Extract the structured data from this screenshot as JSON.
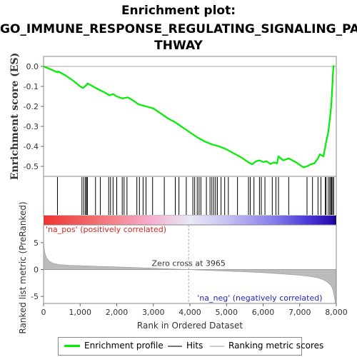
{
  "title_line1": "Enrichment plot:",
  "title_line2": "GO_IMMUNE_RESPONSE_REGULATING_SIGNALING_PA",
  "title_line3": "THWAY",
  "colors": {
    "enrichment_line": "#00ee00",
    "hits": "#000000",
    "metric_fill": "#bbbbbb",
    "pos_label": "#dd2222",
    "neg_label": "#2222cc",
    "zero_line": "#aaaaaa"
  },
  "chart_data": [
    {
      "type": "line",
      "name": "enrichment-profile",
      "ylabel": "Enrichment score (ES)",
      "ylim": [
        -0.55,
        0.05
      ],
      "xlim": [
        0,
        8000
      ],
      "yticks": [
        "0.0",
        "-0.1",
        "-0.2",
        "-0.3",
        "-0.4",
        "-0.5"
      ],
      "ytick_values": [
        0.0,
        -0.1,
        -0.2,
        -0.3,
        -0.4,
        -0.5
      ],
      "points": [
        [
          0,
          0.0
        ],
        [
          200,
          -0.015
        ],
        [
          380,
          -0.03
        ],
        [
          400,
          -0.025
        ],
        [
          600,
          -0.045
        ],
        [
          800,
          -0.07
        ],
        [
          1000,
          -0.1
        ],
        [
          1080,
          -0.108
        ],
        [
          1130,
          -0.1
        ],
        [
          1180,
          -0.092
        ],
        [
          1200,
          -0.085
        ],
        [
          1400,
          -0.105
        ],
        [
          1550,
          -0.12
        ],
        [
          1650,
          -0.128
        ],
        [
          1800,
          -0.145
        ],
        [
          1900,
          -0.138
        ],
        [
          2000,
          -0.15
        ],
        [
          2150,
          -0.16
        ],
        [
          2300,
          -0.155
        ],
        [
          2400,
          -0.165
        ],
        [
          2600,
          -0.19
        ],
        [
          2800,
          -0.2
        ],
        [
          3000,
          -0.21
        ],
        [
          3200,
          -0.235
        ],
        [
          3400,
          -0.26
        ],
        [
          3600,
          -0.28
        ],
        [
          3800,
          -0.305
        ],
        [
          4000,
          -0.33
        ],
        [
          4200,
          -0.355
        ],
        [
          4400,
          -0.375
        ],
        [
          4600,
          -0.39
        ],
        [
          4800,
          -0.4
        ],
        [
          5000,
          -0.415
        ],
        [
          5200,
          -0.435
        ],
        [
          5400,
          -0.455
        ],
        [
          5600,
          -0.48
        ],
        [
          5700,
          -0.49
        ],
        [
          5800,
          -0.475
        ],
        [
          5900,
          -0.47
        ],
        [
          6000,
          -0.478
        ],
        [
          6100,
          -0.475
        ],
        [
          6200,
          -0.488
        ],
        [
          6300,
          -0.48
        ],
        [
          6380,
          -0.485
        ],
        [
          6420,
          -0.45
        ],
        [
          6550,
          -0.47
        ],
        [
          6700,
          -0.46
        ],
        [
          6900,
          -0.48
        ],
        [
          7100,
          -0.505
        ],
        [
          7200,
          -0.5
        ],
        [
          7300,
          -0.49
        ],
        [
          7400,
          -0.485
        ],
        [
          7500,
          -0.46
        ],
        [
          7550,
          -0.44
        ],
        [
          7650,
          -0.45
        ],
        [
          7720,
          -0.38
        ],
        [
          7780,
          -0.33
        ],
        [
          7820,
          -0.27
        ],
        [
          7860,
          -0.2
        ],
        [
          7880,
          -0.14
        ],
        [
          7900,
          -0.07
        ],
        [
          7920,
          0.0
        ],
        [
          7940,
          0.005
        ]
      ]
    },
    {
      "type": "hits",
      "name": "hits",
      "x": [
        380,
        1050,
        1100,
        1150,
        1170,
        1200,
        1420,
        1550,
        1780,
        1830,
        1900,
        2000,
        2150,
        2200,
        2280,
        2550,
        2620,
        2720,
        2800,
        2980,
        3300,
        3600,
        3700,
        3900,
        4080,
        4130,
        4200,
        4250,
        4300,
        4450,
        4550,
        4600,
        4650,
        4700,
        4750,
        4850,
        4950,
        5050,
        5300,
        5600,
        5650,
        5750,
        5900,
        5950,
        6050,
        6250,
        6350,
        6420,
        6700,
        7200,
        7350,
        7500,
        7580,
        7700,
        7720,
        7780,
        7820,
        7850,
        7870,
        7900,
        7930
      ]
    },
    {
      "type": "area",
      "name": "ranked-list-metric",
      "ylabel": "Ranked list metric (PreRanked)",
      "xlabel": "Rank in Ordered Dataset",
      "xlim": [
        0,
        8000
      ],
      "ylim": [
        -6.3,
        8.3
      ],
      "xticks": [
        "0",
        "1,000",
        "2,000",
        "3,000",
        "4,000",
        "5,000",
        "6,000",
        "7,000",
        "8,000"
      ],
      "xtick_values": [
        0,
        1000,
        2000,
        3000,
        4000,
        5000,
        6000,
        7000,
        8000
      ],
      "yticks": [
        "5",
        "0",
        "-5"
      ],
      "ytick_values": [
        5,
        0,
        -5
      ],
      "zero_cross_label": "Zero cross at 3965",
      "zero_cross": 3965,
      "pos_label": "'na_pos' (positively correlated)",
      "neg_label": "'na_neg' (negatively correlated)",
      "points": [
        [
          0,
          5.3
        ],
        [
          30,
          3.2
        ],
        [
          80,
          2.2
        ],
        [
          150,
          1.6
        ],
        [
          250,
          1.2
        ],
        [
          400,
          0.95
        ],
        [
          700,
          0.8
        ],
        [
          1000,
          0.72
        ],
        [
          1500,
          0.6
        ],
        [
          2000,
          0.5
        ],
        [
          2500,
          0.38
        ],
        [
          3000,
          0.26
        ],
        [
          3500,
          0.12
        ],
        [
          3965,
          0.0
        ],
        [
          4500,
          -0.15
        ],
        [
          5000,
          -0.28
        ],
        [
          5500,
          -0.42
        ],
        [
          6000,
          -0.58
        ],
        [
          6500,
          -0.8
        ],
        [
          7000,
          -1.05
        ],
        [
          7300,
          -1.3
        ],
        [
          7500,
          -1.55
        ],
        [
          7650,
          -1.9
        ],
        [
          7750,
          -2.3
        ],
        [
          7850,
          -2.9
        ],
        [
          7900,
          -3.6
        ],
        [
          7940,
          -4.8
        ],
        [
          7970,
          -6.0
        ],
        [
          7990,
          -6.2
        ]
      ]
    }
  ],
  "legend": {
    "items": [
      "Enrichment profile",
      "Hits",
      "Ranking metric scores"
    ]
  }
}
